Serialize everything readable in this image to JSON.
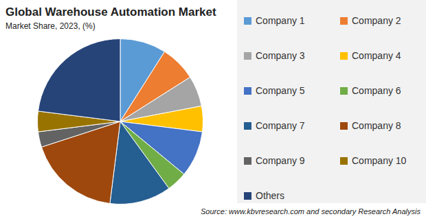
{
  "chart_data": {
    "type": "pie",
    "title": "Global Warehouse Automation Market",
    "subtitle": "Market Share, 2023, (%)",
    "categories": [
      "Company 1",
      "Company 2",
      "Company 3",
      "Company 4",
      "Company 5",
      "Company 6",
      "Company 7",
      "Company 8",
      "Company 9",
      "Company 10",
      "Others"
    ],
    "values": [
      9,
      7,
      6,
      5,
      9,
      4,
      12,
      18,
      3,
      4,
      23
    ],
    "colors": [
      "#5b9bd5",
      "#ed7d31",
      "#a5a5a5",
      "#ffc000",
      "#4472c4",
      "#70ad47",
      "#255e91",
      "#9e480e",
      "#636363",
      "#997300",
      "#264478"
    ],
    "legend": "right",
    "annotations": [
      "Source: www.kbvresearch.com and secondary Research Analysis"
    ]
  }
}
